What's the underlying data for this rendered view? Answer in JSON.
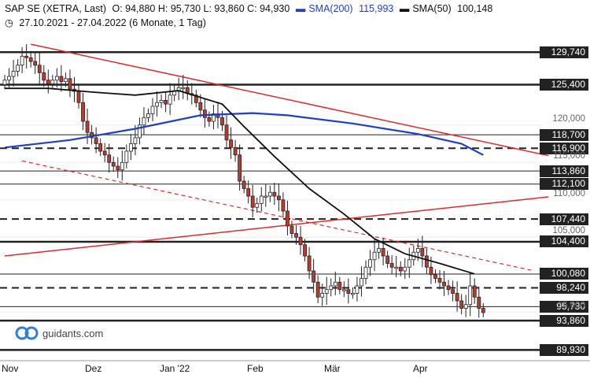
{
  "header": {
    "symbol": "SAP SE (XETRA, Last)",
    "ohlc": "O: 94,880  H: 95,730  L: 93,860  C: 94,930",
    "sma200_label": "SMA(200)",
    "sma200_value": "115,993",
    "sma50_label": "SMA(50)",
    "sma50_value": "100,148",
    "range": "27.10.2021 - 27.04.2022  (6 Monate, 1 Tag)"
  },
  "logo": {
    "text": "guidants.com"
  },
  "colors": {
    "sma200": "#1f3fc9",
    "sma50": "#111111",
    "trend": "#e02a2a",
    "up": "#ffffff",
    "down": "#c0392b",
    "label_bg": "#222222"
  },
  "chart_data": {
    "type": "candlestick",
    "ylim": [
      88.5,
      132.5
    ],
    "x_labels": [
      "Nov",
      "Dez",
      "Jan '22",
      "Feb",
      "Mär",
      "Apr"
    ],
    "y_ticks": [
      "120,000",
      "115,000",
      "110,000",
      "105,000",
      "95,000"
    ],
    "levels": [
      {
        "label": "129,740",
        "value": 129.74,
        "style": "solid"
      },
      {
        "label": "125,400",
        "value": 125.4,
        "style": "solid"
      },
      {
        "label": "118,700",
        "value": 118.7,
        "style": "thin"
      },
      {
        "label": "116,900",
        "value": 116.9,
        "style": "dashed"
      },
      {
        "label": "113,860",
        "value": 113.86,
        "style": "thin"
      },
      {
        "label": "112,100",
        "value": 112.1,
        "style": "thin"
      },
      {
        "label": "107,440",
        "value": 107.44,
        "style": "dashed"
      },
      {
        "label": "104,400",
        "value": 104.4,
        "style": "solid"
      },
      {
        "label": "100,080",
        "value": 100.08,
        "style": "thin"
      },
      {
        "label": "98,240",
        "value": 98.24,
        "style": "dashed"
      },
      {
        "label": "95,730",
        "value": 95.73,
        "style": "thin"
      },
      {
        "label": "93,860",
        "value": 93.86,
        "style": "solid"
      },
      {
        "label": "89,930",
        "value": 89.93,
        "style": "solid"
      }
    ],
    "closes": [
      126.0,
      126.5,
      127.2,
      128.0,
      129.2,
      129.0,
      128.5,
      128.0,
      127.0,
      126.0,
      125.5,
      126.0,
      126.5,
      125.8,
      126.2,
      124.8,
      124.5,
      123.0,
      120.5,
      119.0,
      118.3,
      117.5,
      116.5,
      116.0,
      115.0,
      114.5,
      114.0,
      115.0,
      116.5,
      117.5,
      118.3,
      120.0,
      121.0,
      121.5,
      122.5,
      123.0,
      123.3,
      122.8,
      124.0,
      124.5,
      125.0,
      125.0,
      124.2,
      124.0,
      123.0,
      122.0,
      121.0,
      120.5,
      121.5,
      121.0,
      120.0,
      118.0,
      117.0,
      116.0,
      112.5,
      111.5,
      110.5,
      109.0,
      109.5,
      110.5,
      110.5,
      111.0,
      110.5,
      110.0,
      108.5,
      106.5,
      105.5,
      105.0,
      104.0,
      102.5,
      100.5,
      99.0,
      97.0,
      97.5,
      98.0,
      98.5,
      99.0,
      98.0,
      98.0,
      97.5,
      97.5,
      98.5,
      99.5,
      101.0,
      102.0,
      103.0,
      103.5,
      102.5,
      101.5,
      101.0,
      101.0,
      100.5,
      101.0,
      102.0,
      103.0,
      103.5,
      102.5,
      101.0,
      100.0,
      99.5,
      99.0,
      98.5,
      98.0,
      97.5,
      96.5,
      95.5,
      96.0,
      98.5,
      97.0,
      95.5,
      94.93
    ],
    "sma200": [
      [
        0,
        117.0
      ],
      [
        15,
        118.0
      ],
      [
        30,
        119.5
      ],
      [
        45,
        121.3
      ],
      [
        57,
        121.6
      ],
      [
        65,
        121.3
      ],
      [
        80,
        120.2
      ],
      [
        95,
        118.8
      ],
      [
        105,
        117.5
      ],
      [
        110,
        116.0
      ]
    ],
    "sma50": [
      [
        0,
        124.9
      ],
      [
        10,
        124.9
      ],
      [
        20,
        124.4
      ],
      [
        30,
        124.0
      ],
      [
        40,
        124.6
      ],
      [
        50,
        122.8
      ],
      [
        55,
        119.8
      ],
      [
        62,
        115.8
      ],
      [
        70,
        111.5
      ],
      [
        78,
        108.1
      ],
      [
        85,
        104.8
      ],
      [
        92,
        102.8
      ],
      [
        100,
        101.5
      ],
      [
        108,
        100.1
      ]
    ],
    "trendlines": [
      {
        "from": [
          6,
          130.8
        ],
        "to": [
          125,
          115.9
        ],
        "style": "solid"
      },
      {
        "from": [
          4,
          115.2
        ],
        "to": [
          121,
          100.6
        ],
        "style": "dashed"
      },
      {
        "from": [
          0,
          102.5
        ],
        "to": [
          125,
          110.4
        ],
        "style": "solid"
      }
    ]
  }
}
